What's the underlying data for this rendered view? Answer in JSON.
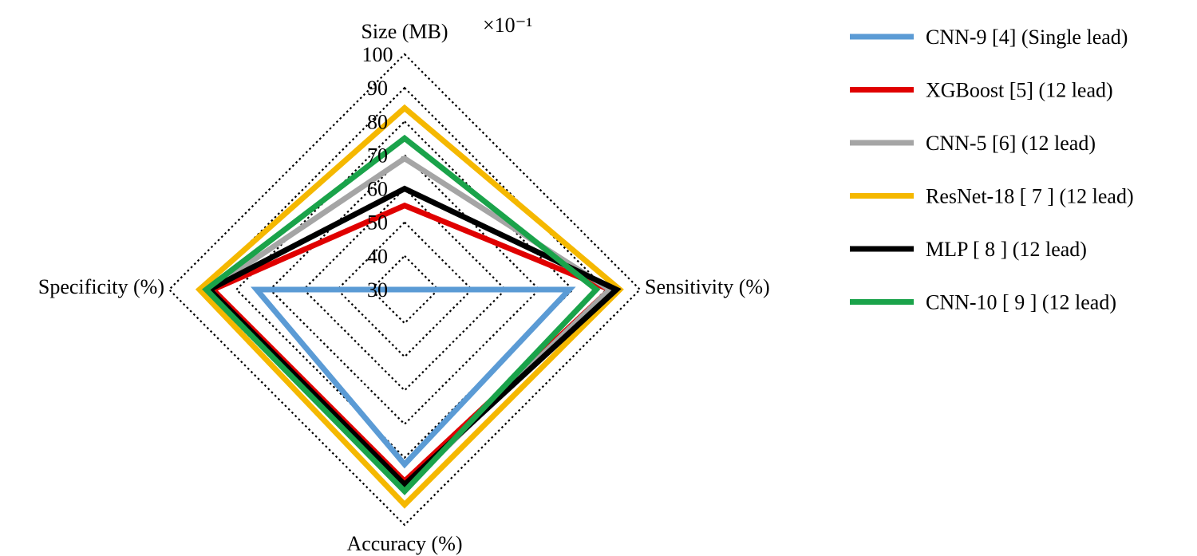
{
  "chart_data": {
    "type": "radar",
    "axis_scale_note": "×10⁻¹",
    "axes": [
      {
        "name": "Size (MB)"
      },
      {
        "name": "Sensitivity (%)"
      },
      {
        "name": "Accuracy (%)"
      },
      {
        "name": "Specificity (%)"
      }
    ],
    "rlim": [
      30,
      100
    ],
    "ticks": [
      30,
      40,
      50,
      60,
      70,
      80,
      90,
      100
    ],
    "tick_labels": [
      "30",
      "40",
      "50",
      "60",
      "70",
      "80",
      "90",
      "100"
    ],
    "grid": true,
    "legend_position": "right",
    "series": [
      {
        "name": "CNN-9",
        "ref": "[4]",
        "note": "(Single lead)",
        "color": "#5b9bd5",
        "values": [
          30,
          79,
          82,
          74
        ]
      },
      {
        "name": "XGBoost",
        "ref": "[5]",
        "note": "(12 lead)",
        "color": "#e00000",
        "values": [
          55,
          91,
          87,
          87
        ]
      },
      {
        "name": "CNN-5",
        "ref": "[6]",
        "note": "(12 lead)",
        "color": "#a5a5a5",
        "values": [
          69,
          91,
          89,
          88
        ]
      },
      {
        "name": "ResNet-18",
        "ref": "[ 7 ]",
        "note": "(12 lead)",
        "color": "#f5b800",
        "values": [
          84,
          94,
          94,
          91
        ]
      },
      {
        "name": "MLP",
        "ref": "[ 8 ]",
        "note": "(12 lead)",
        "color": "#000000",
        "values": [
          60,
          93,
          88,
          88
        ]
      },
      {
        "name": "CNN-10",
        "ref": "[ 9 ]",
        "note": "(12 lead)",
        "color": "#1aa34a",
        "values": [
          75,
          87,
          90,
          89
        ]
      }
    ]
  }
}
